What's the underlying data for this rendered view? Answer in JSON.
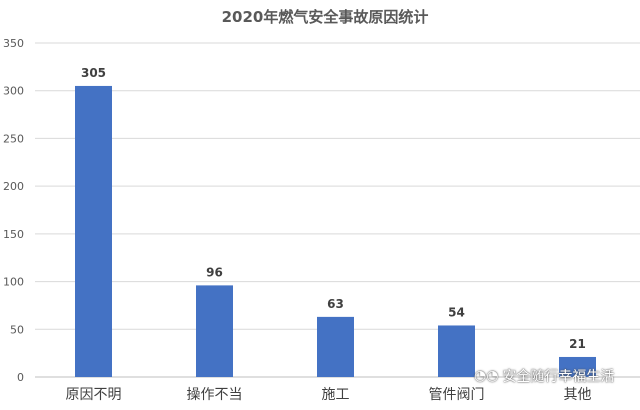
{
  "chart_data": {
    "type": "bar",
    "title": "2020年燃气安全事故原因统计",
    "categories": [
      "原因不明",
      "操作不当",
      "施工",
      "管件阀门",
      "其他"
    ],
    "values": [
      305,
      96,
      63,
      54,
      21
    ],
    "xlabel": "",
    "ylabel": "",
    "ylim": [
      0,
      350
    ],
    "yticks": [
      0,
      50,
      100,
      150,
      200,
      250,
      300,
      350
    ],
    "grid": true,
    "legend": "none",
    "bar_color": "#4472C4",
    "data_labels": true
  },
  "watermark": {
    "text": "安全随行幸福生活",
    "icon": "wechat-icon"
  }
}
